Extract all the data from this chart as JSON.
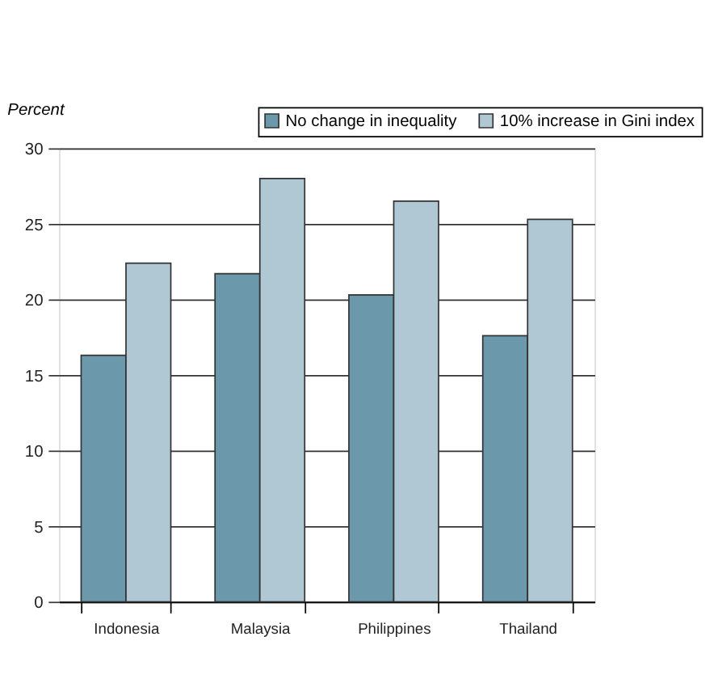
{
  "chart_data": {
    "type": "bar",
    "ylabel": "Percent",
    "categories": [
      "Indonesia",
      "Malaysia",
      "Philippines",
      "Thailand"
    ],
    "series": [
      {
        "name": "No change in inequality",
        "color": "#6b98ab",
        "values": [
          16.3,
          21.7,
          20.3,
          17.6
        ]
      },
      {
        "name": "10% increase in Gini index",
        "color": "#b0c7d4",
        "values": [
          22.4,
          28.0,
          26.5,
          25.3
        ]
      }
    ],
    "ylim": [
      0,
      30
    ],
    "yticks": [
      0,
      5,
      10,
      15,
      20,
      25,
      30
    ],
    "grid": "y",
    "legend": "top right"
  }
}
